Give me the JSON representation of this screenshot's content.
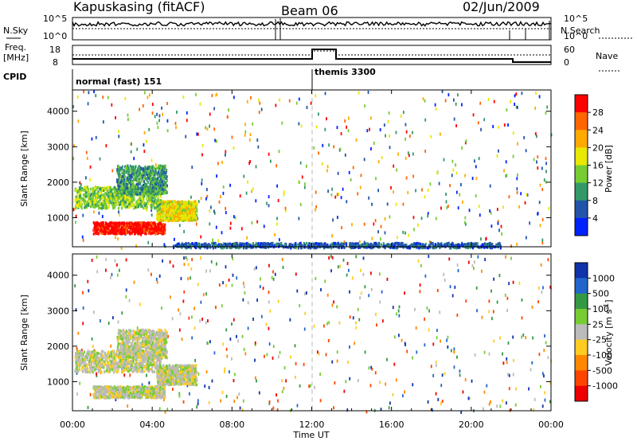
{
  "header": {
    "station": "Kapuskasing (fitACF)",
    "beam": "Beam 06",
    "date": "02/Jun/2009"
  },
  "noise_panel": {
    "left_label": "N.Sky",
    "right_label": "N.Search",
    "ticks_left": [
      "10^5",
      "10^0"
    ],
    "ticks_right": [
      "10^5",
      "10^0"
    ]
  },
  "freq_panel": {
    "left_label_1": "Freq.",
    "left_label_2": "[MHz]",
    "right_label": "Nave",
    "ticks_left": [
      "18",
      "8"
    ],
    "ticks_right": [
      "60",
      "0"
    ]
  },
  "cpid": {
    "label": "CPID",
    "entries": [
      {
        "text": "normal (fast) 151",
        "start_hour": 0
      },
      {
        "text": "themis 3300",
        "start_hour": 12.0
      }
    ]
  },
  "x_axis": {
    "label": "Time UT",
    "ticks": [
      "00:00",
      "04:00",
      "08:00",
      "12:00",
      "16:00",
      "20:00",
      "00:00"
    ]
  },
  "chart_data": [
    {
      "type": "heatmap",
      "title": "",
      "ylabel": "Slant Range [km]",
      "xlabel": "",
      "xlim_hours": [
        0,
        24
      ],
      "ylim": [
        180,
        4600
      ],
      "yticks": [
        "1000",
        "2000",
        "3000",
        "4000"
      ],
      "colorbar": {
        "label": "Power [dB]",
        "ticks": [
          "28",
          "24",
          "20",
          "16",
          "12",
          "8",
          "4"
        ],
        "colors": [
          "#ff0000",
          "#ff6600",
          "#ffaa00",
          "#e8e800",
          "#77cc33",
          "#339966",
          "#2255aa",
          "#0022ff"
        ]
      },
      "features": [
        {
          "name": "band",
          "h0": 1.0,
          "h1": 4.6,
          "r0": 580,
          "r1": 900,
          "level": 0
        },
        {
          "name": "band",
          "h0": 4.2,
          "h1": 6.2,
          "r0": 950,
          "r1": 1500,
          "level": 3
        },
        {
          "name": "band",
          "h0": 0.1,
          "h1": 4.4,
          "r0": 1300,
          "r1": 1900,
          "level": 4
        },
        {
          "name": "band",
          "h0": 2.2,
          "h1": 4.7,
          "r0": 1700,
          "r1": 2500,
          "level": 5
        },
        {
          "name": "ground",
          "h0": 5.0,
          "h1": 21.5,
          "r0": 180,
          "r1": 320,
          "level": 6
        }
      ]
    },
    {
      "type": "heatmap",
      "title": "",
      "ylabel": "Slant Range [km]",
      "xlabel": "Time UT",
      "xlim_hours": [
        0,
        24
      ],
      "ylim": [
        180,
        4600
      ],
      "yticks": [
        "1000",
        "2000",
        "3000",
        "4000"
      ],
      "colorbar": {
        "label": "Velocity [m s^-1]",
        "ticks": [
          "1000",
          "500",
          "100",
          "25",
          "-25",
          "-100",
          "-500",
          "-1000"
        ],
        "colors": [
          "#1133aa",
          "#2266cc",
          "#339944",
          "#77cc33",
          "#bbbbbb",
          "#ffcc22",
          "#ff8800",
          "#ff4400",
          "#ee0000"
        ]
      },
      "features": [
        {
          "name": "band",
          "h0": 1.0,
          "h1": 4.6,
          "r0": 580,
          "r1": 900,
          "level": 4
        },
        {
          "name": "band",
          "h0": 4.2,
          "h1": 6.2,
          "r0": 950,
          "r1": 1500,
          "level": 4
        },
        {
          "name": "band",
          "h0": 0.1,
          "h1": 4.4,
          "r0": 1300,
          "r1": 1900,
          "level": 4
        },
        {
          "name": "band",
          "h0": 2.2,
          "h1": 4.7,
          "r0": 1700,
          "r1": 2500,
          "level": 4
        }
      ]
    }
  ]
}
